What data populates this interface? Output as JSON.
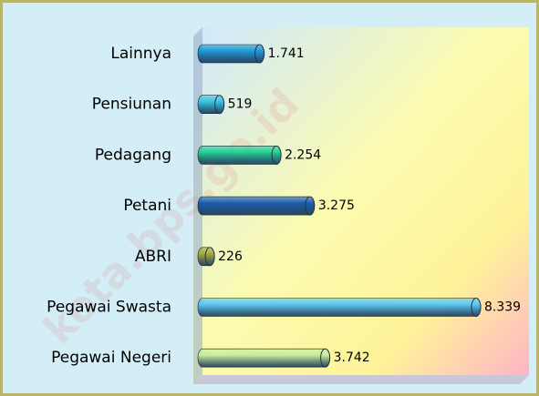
{
  "chart_data": {
    "type": "bar",
    "orientation": "horizontal",
    "categories": [
      "Lainnya",
      "Pensiunan",
      "Pedagang",
      "Petani",
      "ABRI",
      "Pegawai Swasta",
      "Pegawai Negeri"
    ],
    "values": [
      1741,
      519,
      2254,
      3275,
      226,
      8339,
      3742
    ],
    "value_labels": [
      "1.741",
      "519",
      "2.254",
      "3.275",
      "226",
      "8.339",
      "3.742"
    ],
    "colors": [
      "#1e9ad6",
      "#38c4e2",
      "#22cf95",
      "#1a5cb0",
      "#a4ad3c",
      "#5bc7f2",
      "#c6eea0"
    ],
    "watermark": "kota.bps.go.id"
  }
}
